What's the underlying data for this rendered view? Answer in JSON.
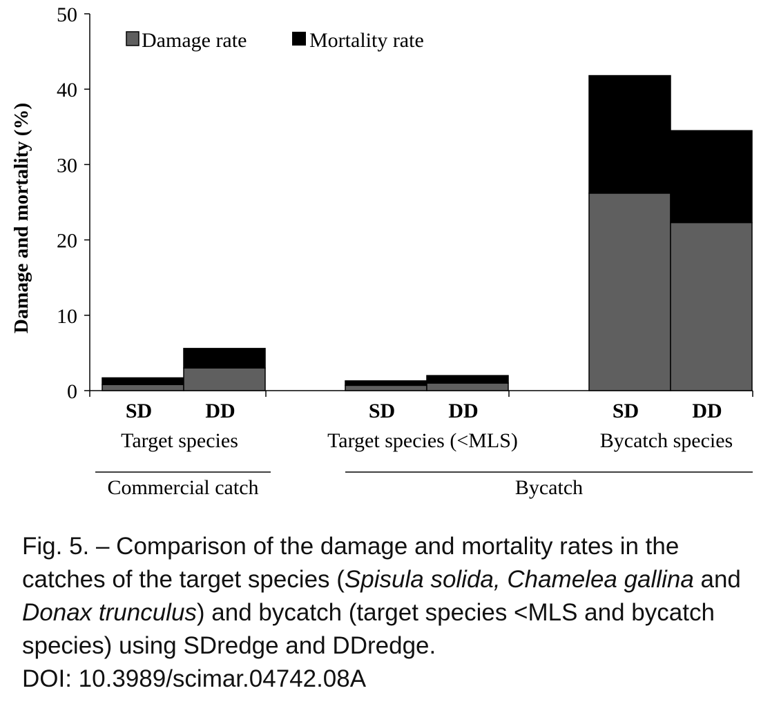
{
  "chart_data": {
    "type": "bar",
    "stacked": true,
    "ylabel": "Damage and mortality (%)",
    "xlabel": "",
    "ylim": [
      0,
      50
    ],
    "yticks": [
      0,
      10,
      20,
      30,
      40,
      50
    ],
    "grid": false,
    "legend_placement": "top-left",
    "categories": [
      "SD",
      "DD",
      "SD",
      "DD",
      "SD",
      "DD"
    ],
    "groups": [
      {
        "label": "Target species",
        "categories": [
          "SD",
          "DD"
        ]
      },
      {
        "label": "Target species (<MLS)",
        "categories": [
          "SD",
          "DD"
        ]
      },
      {
        "label": "Bycatch species",
        "categories": [
          "SD",
          "DD"
        ]
      }
    ],
    "super_groups": [
      {
        "label": "Commercial catch",
        "groups": [
          "Target species"
        ]
      },
      {
        "label": "Bycatch",
        "groups": [
          "Target species (<MLS)",
          "Bycatch species"
        ]
      }
    ],
    "series": [
      {
        "name": "Damage rate",
        "color": "#5f5f5f",
        "values": [
          0.8,
          3.0,
          0.7,
          1.0,
          26.2,
          22.3
        ]
      },
      {
        "name": "Mortality rate",
        "color": "#000000",
        "values": [
          0.9,
          2.6,
          0.6,
          1.0,
          15.6,
          12.2
        ]
      }
    ]
  },
  "caption": {
    "prefix": "Fig. 5. – Comparison of the damage and mortality rates in the catches of the target species (",
    "species_1": "Spisula solida, Chamelea gallina",
    "and_1": " and ",
    "species_2": "Donax trunculus",
    "suffix": ") and bycatch (target species <MLS and bycatch species) using SDredge and DDredge.",
    "doi": "DOI: 10.3989/scimar.04742.08A"
  }
}
